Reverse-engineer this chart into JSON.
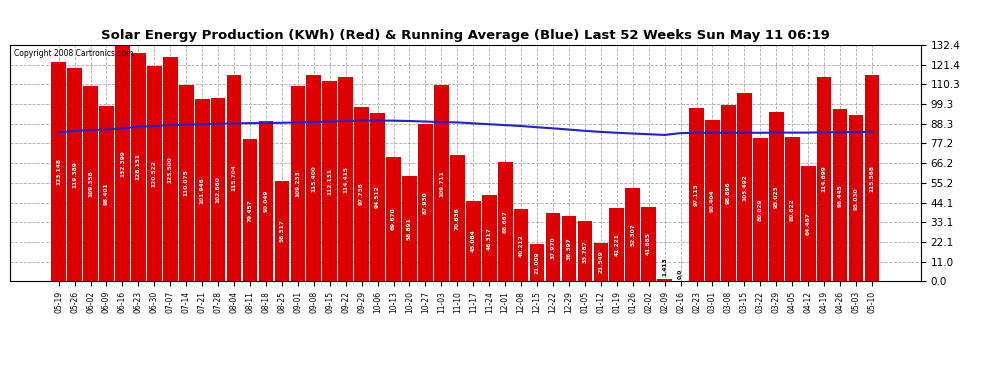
{
  "title": "Solar Energy Production (KWh) (Red) & Running Average (Blue) Last 52 Weeks Sun May 11 06:19",
  "copyright": "Copyright 2008 Cartronics.com",
  "bar_color": "#dd0000",
  "avg_line_color": "#2222cc",
  "background_color": "#ffffff",
  "grid_color": "#aaaaaa",
  "ylim": [
    0.0,
    132.4
  ],
  "yticks": [
    0.0,
    11.0,
    22.1,
    33.1,
    44.1,
    55.2,
    66.2,
    77.2,
    88.3,
    99.3,
    110.3,
    121.4,
    132.4
  ],
  "categories": [
    "05-19",
    "05-26",
    "06-02",
    "06-09",
    "06-16",
    "06-23",
    "06-30",
    "07-07",
    "07-14",
    "07-21",
    "07-28",
    "08-04",
    "08-11",
    "08-18",
    "08-25",
    "09-01",
    "09-08",
    "09-15",
    "09-22",
    "09-29",
    "10-06",
    "10-13",
    "10-20",
    "10-27",
    "11-03",
    "11-10",
    "11-17",
    "11-24",
    "12-01",
    "12-08",
    "12-15",
    "12-22",
    "12-29",
    "01-05",
    "01-12",
    "01-19",
    "01-26",
    "02-02",
    "02-09",
    "02-16",
    "02-23",
    "03-01",
    "03-08",
    "03-15",
    "03-22",
    "03-29",
    "04-05",
    "04-12",
    "04-19",
    "04-26",
    "05-03",
    "05-10"
  ],
  "values": [
    123.148,
    119.389,
    109.358,
    98.401,
    132.399,
    128.151,
    120.522,
    125.5,
    110.075,
    101.946,
    102.66,
    115.704,
    79.457,
    90.049,
    56.317,
    109.233,
    115.4,
    112.131,
    114.415,
    97.738,
    94.512,
    69.67,
    58.891,
    87.93,
    109.711,
    70.636,
    45.084,
    48.317,
    66.667,
    40.212,
    21.009,
    37.97,
    36.397,
    33.787,
    21.549,
    41.221,
    52.307,
    41.885,
    1.413,
    0.0,
    97.113,
    90.404,
    98.896,
    105.492,
    80.029,
    95.023,
    80.822,
    64.487,
    114.699,
    96.445,
    93.03,
    115.568
  ],
  "running_avg": [
    83.5,
    84.2,
    84.8,
    85.0,
    85.8,
    86.5,
    87.0,
    87.5,
    87.8,
    88.0,
    88.2,
    88.5,
    88.6,
    88.7,
    88.8,
    89.0,
    89.2,
    89.5,
    89.8,
    90.0,
    90.1,
    90.0,
    89.8,
    89.5,
    89.2,
    89.0,
    88.5,
    88.0,
    87.5,
    87.0,
    86.3,
    85.7,
    85.0,
    84.3,
    83.7,
    83.2,
    82.8,
    82.4,
    82.0,
    83.0,
    83.2,
    83.2,
    83.2,
    83.2,
    83.2,
    83.3,
    83.3,
    83.3,
    83.5,
    83.5,
    83.6,
    83.8
  ]
}
